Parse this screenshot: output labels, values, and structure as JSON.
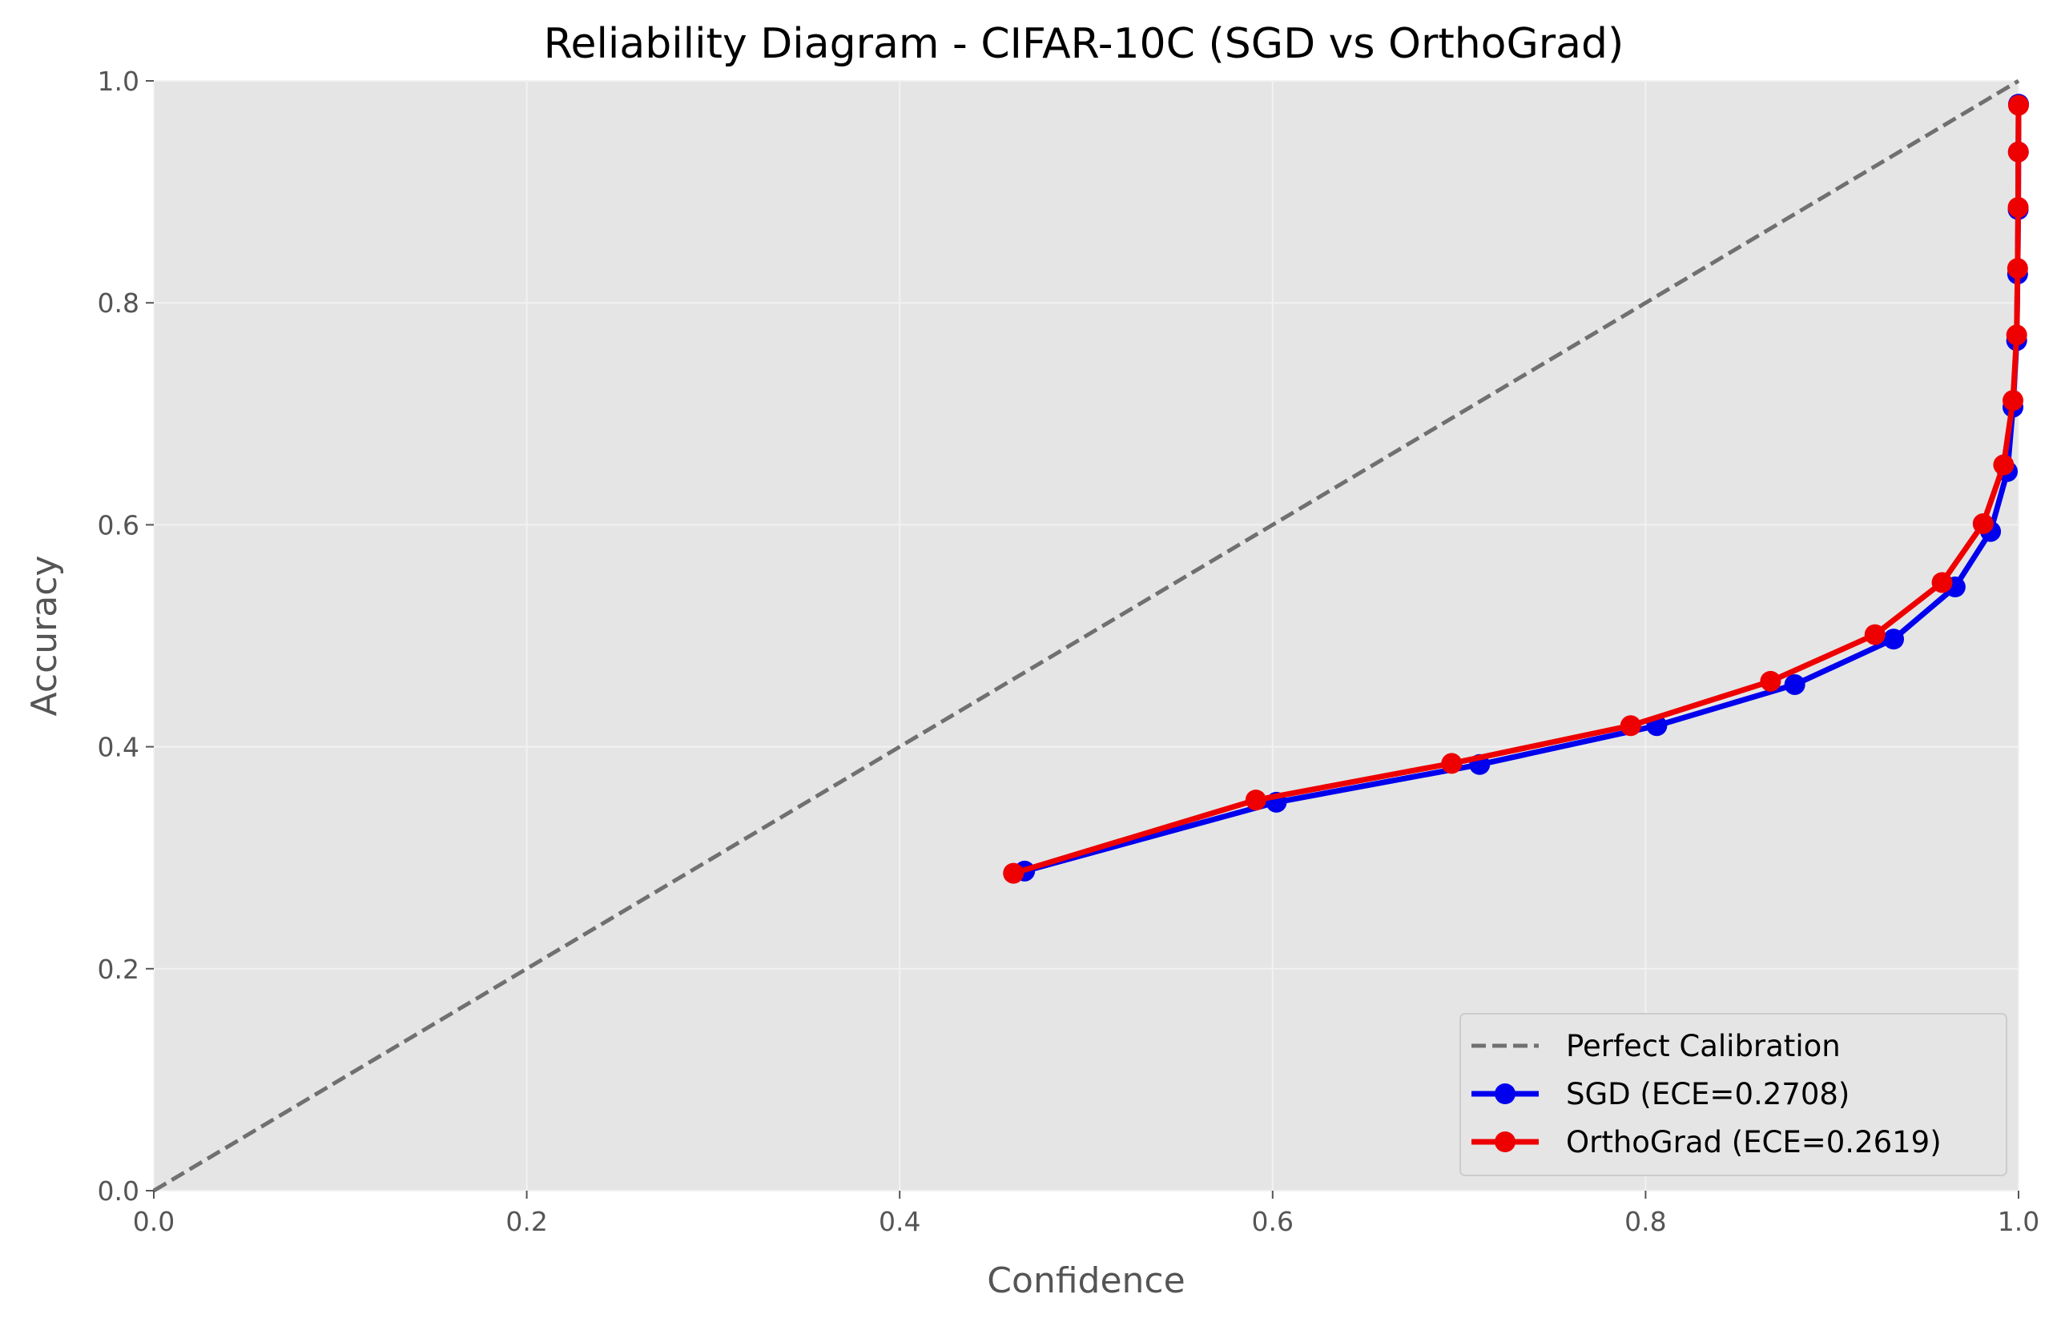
{
  "chart_data": {
    "type": "line",
    "title": "Reliability Diagram - CIFAR-10C (SGD vs OrthoGrad)",
    "xlabel": "Confidence",
    "ylabel": "Accuracy",
    "xlim": [
      0.0,
      1.0
    ],
    "ylim": [
      0.0,
      1.0
    ],
    "xticks": [
      "0.0",
      "0.2",
      "0.4",
      "0.6",
      "0.8",
      "1.0"
    ],
    "yticks": [
      "0.0",
      "0.2",
      "0.4",
      "0.6",
      "0.8",
      "1.0"
    ],
    "grid": true,
    "legend_position": "lower-right",
    "reference_line": {
      "name": "Perfect Calibration",
      "x": [
        0.0,
        1.0
      ],
      "y": [
        0.0,
        1.0
      ],
      "color": "#707070",
      "style": "dashed"
    },
    "series": [
      {
        "name": "SGD (ECE=0.2708)",
        "color": "#0000ee",
        "x": [
          0.467,
          0.602,
          0.711,
          0.806,
          0.88,
          0.933,
          0.966,
          0.985,
          0.994,
          0.997,
          0.999,
          0.9995,
          0.9998,
          0.9999,
          1.0
        ],
        "y": [
          0.288,
          0.35,
          0.384,
          0.419,
          0.456,
          0.497,
          0.544,
          0.594,
          0.648,
          0.706,
          0.766,
          0.826,
          0.884,
          0.936,
          0.979
        ]
      },
      {
        "name": "OrthoGrad (ECE=0.2619)",
        "color": "#ee0000",
        "x": [
          0.461,
          0.591,
          0.696,
          0.792,
          0.867,
          0.923,
          0.959,
          0.981,
          0.992,
          0.997,
          0.999,
          0.9995,
          0.9998,
          0.9999,
          1.0
        ],
        "y": [
          0.286,
          0.352,
          0.385,
          0.419,
          0.459,
          0.501,
          0.548,
          0.601,
          0.654,
          0.712,
          0.771,
          0.831,
          0.886,
          0.936,
          0.978
        ]
      }
    ]
  }
}
